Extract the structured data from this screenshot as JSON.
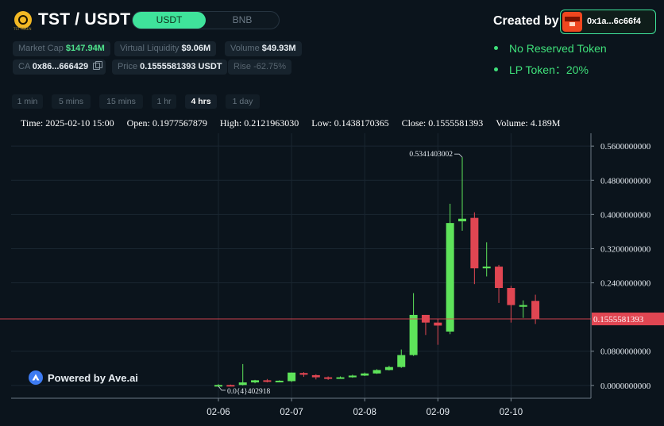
{
  "header": {
    "token_logo_caption": "TST TOKEN",
    "pair": "TST / USDT",
    "quote_toggle": {
      "active": "USDT",
      "inactive": "BNB"
    },
    "stats_row1": [
      {
        "label": "Market Cap",
        "value": "$147.94M"
      },
      {
        "label": "Virtual Liquidity",
        "value": "$9.06M"
      },
      {
        "label": "Volume",
        "value": "$49.93M"
      }
    ],
    "stats_row2": {
      "ca_label": "CA",
      "ca_value": "0x86...666429",
      "price_label": "Price",
      "price_value": "0.1555581393 USDT",
      "rise_label": "Rise",
      "rise_value": "-62.75%"
    }
  },
  "creator": {
    "label": "Created by",
    "address": "0x1a...6c66f4",
    "features": [
      "No Reserved Token",
      "LP Token：20%"
    ]
  },
  "intervals": [
    "1 min",
    "5 mins",
    "15 mins",
    "1 hr",
    "4 hrs",
    "1 day"
  ],
  "active_interval": "4 hrs",
  "infoline": {
    "time": "Time: 2025-02-10 15:00",
    "open": "Open: 0.1977567879",
    "high": "High: 0.2121963030",
    "low": "Low: 0.1438170365",
    "close": "Close: 0.1555581393",
    "volume": "Volume: 4.189M"
  },
  "watermark": "Powered by Ave.ai",
  "colors": {
    "up": "#5ee35a",
    "down": "#e04652",
    "accent": "#3fe39b",
    "priceline": "#e04652"
  },
  "chart_data": {
    "type": "candlestick",
    "x_ticks": [
      "02-06",
      "02-07",
      "02-08",
      "02-09",
      "02-10"
    ],
    "y_ticks": [
      "0.5600000000",
      "0.4800000000",
      "0.4000000000",
      "0.3200000000",
      "0.2400000000",
      "0.0800000000",
      "0.0000000000"
    ],
    "ylim": [
      -0.03,
      0.59
    ],
    "current_price_label": "0.1555581393",
    "current_price": 0.1555581393,
    "max_label": "0.5341403002",
    "min_label": "0.0{4}402918",
    "grid": true,
    "candles": [
      {
        "t": 0,
        "o": 5e-05,
        "h": 0.003,
        "l": -0.002,
        "c": 0.001
      },
      {
        "t": 1,
        "o": 0.001,
        "h": 0.002,
        "l": -0.002,
        "c": 0.0
      },
      {
        "t": 2,
        "o": 0.001,
        "h": 0.05,
        "l": 0.0,
        "c": 0.007
      },
      {
        "t": 3,
        "o": 0.007,
        "h": 0.013,
        "l": 0.005,
        "c": 0.012
      },
      {
        "t": 4,
        "o": 0.012,
        "h": 0.015,
        "l": 0.007,
        "c": 0.009
      },
      {
        "t": 5,
        "o": 0.009,
        "h": 0.012,
        "l": 0.008,
        "c": 0.011
      },
      {
        "t": 6,
        "o": 0.01,
        "h": 0.03,
        "l": 0.008,
        "c": 0.03
      },
      {
        "t": 7,
        "o": 0.029,
        "h": 0.031,
        "l": 0.02,
        "c": 0.025
      },
      {
        "t": 8,
        "o": 0.024,
        "h": 0.026,
        "l": 0.014,
        "c": 0.019
      },
      {
        "t": 9,
        "o": 0.019,
        "h": 0.021,
        "l": 0.013,
        "c": 0.016
      },
      {
        "t": 10,
        "o": 0.017,
        "h": 0.021,
        "l": 0.016,
        "c": 0.019
      },
      {
        "t": 11,
        "o": 0.019,
        "h": 0.025,
        "l": 0.018,
        "c": 0.023
      },
      {
        "t": 12,
        "o": 0.023,
        "h": 0.03,
        "l": 0.022,
        "c": 0.028
      },
      {
        "t": 13,
        "o": 0.028,
        "h": 0.038,
        "l": 0.027,
        "c": 0.036
      },
      {
        "t": 14,
        "o": 0.036,
        "h": 0.046,
        "l": 0.035,
        "c": 0.043
      },
      {
        "t": 15,
        "o": 0.043,
        "h": 0.084,
        "l": 0.041,
        "c": 0.071
      },
      {
        "t": 16,
        "o": 0.071,
        "h": 0.216,
        "l": 0.069,
        "c": 0.165
      },
      {
        "t": 17,
        "o": 0.165,
        "h": 0.165,
        "l": 0.118,
        "c": 0.147
      },
      {
        "t": 18,
        "o": 0.147,
        "h": 0.155,
        "l": 0.095,
        "c": 0.14
      },
      {
        "t": 19,
        "o": 0.126,
        "h": 0.425,
        "l": 0.12,
        "c": 0.38
      },
      {
        "t": 20,
        "o": 0.384,
        "h": 0.534,
        "l": 0.362,
        "c": 0.39
      },
      {
        "t": 21,
        "o": 0.392,
        "h": 0.405,
        "l": 0.237,
        "c": 0.274
      },
      {
        "t": 22,
        "o": 0.274,
        "h": 0.335,
        "l": 0.255,
        "c": 0.278
      },
      {
        "t": 23,
        "o": 0.278,
        "h": 0.282,
        "l": 0.193,
        "c": 0.228
      },
      {
        "t": 24,
        "o": 0.228,
        "h": 0.233,
        "l": 0.147,
        "c": 0.188
      },
      {
        "t": 25,
        "o": 0.184,
        "h": 0.199,
        "l": 0.158,
        "c": 0.188
      },
      {
        "t": 26,
        "o": 0.1978,
        "h": 0.2122,
        "l": 0.1438,
        "c": 0.1556
      }
    ]
  }
}
